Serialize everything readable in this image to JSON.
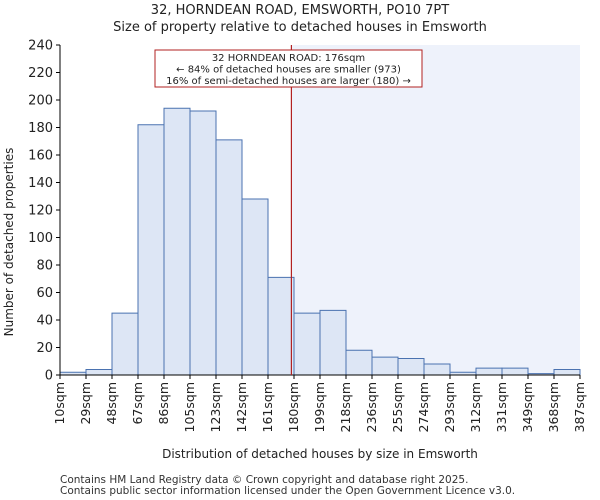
{
  "chart_data": {
    "type": "bar",
    "title": "32, HORNDEAN ROAD, EMSWORTH, PO10 7PT",
    "subtitle": "Size of property relative to detached houses in Emsworth",
    "xlabel": "Distribution of detached houses by size in Emsworth",
    "ylabel": "Number of detached properties",
    "ylim": [
      0,
      240
    ],
    "yticks": [
      0,
      20,
      40,
      60,
      80,
      100,
      120,
      140,
      160,
      180,
      200,
      220,
      240
    ],
    "categories": [
      "10sqm",
      "29sqm",
      "48sqm",
      "67sqm",
      "86sqm",
      "105sqm",
      "123sqm",
      "142sqm",
      "161sqm",
      "180sqm",
      "199sqm",
      "218sqm",
      "236sqm",
      "255sqm",
      "274sqm",
      "293sqm",
      "312sqm",
      "331sqm",
      "349sqm",
      "368sqm",
      "387sqm"
    ],
    "values": [
      2,
      4,
      45,
      182,
      194,
      192,
      171,
      128,
      71,
      45,
      47,
      18,
      13,
      12,
      8,
      2,
      5,
      5,
      1,
      4,
      0
    ],
    "marker": {
      "value_sqm": 176,
      "bin_position": 8.9,
      "annotation_lines": [
        "32 HORNDEAN ROAD: 176sqm",
        "← 84% of detached houses are smaller (973)",
        "16% of semi-detached houses are larger (180) →"
      ]
    },
    "colors": {
      "bar_fill": "#dde6f5",
      "bar_stroke": "#4a72b0",
      "marker_line": "#b22222",
      "highlight_fill": "#eef2fb",
      "annotation_border": "#b22222"
    }
  },
  "footer": {
    "line1": "Contains HM Land Registry data © Crown copyright and database right 2025.",
    "line2": "Contains public sector information licensed under the Open Government Licence v3.0."
  }
}
